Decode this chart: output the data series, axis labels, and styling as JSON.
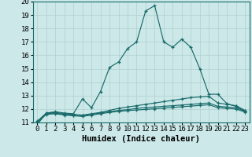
{
  "xlabel": "Humidex (Indice chaleur)",
  "bg_color": "#cce8e8",
  "grid_color": "#b8d8d8",
  "line_color": "#1a6b6b",
  "line1": {
    "x": [
      0,
      1,
      2,
      3,
      4,
      5,
      6,
      7,
      8,
      9,
      10,
      11,
      12,
      13,
      14,
      15,
      16,
      17,
      18,
      19,
      20,
      21,
      22,
      23
    ],
    "y": [
      10.85,
      11.7,
      11.8,
      11.7,
      11.65,
      12.75,
      12.1,
      13.3,
      15.1,
      15.5,
      16.5,
      17.0,
      19.3,
      19.7,
      17.0,
      16.6,
      17.2,
      16.6,
      15.0,
      13.1,
      13.1,
      12.4,
      12.2,
      11.85
    ]
  },
  "line2": {
    "x": [
      0,
      1,
      2,
      3,
      4,
      5,
      6,
      7,
      8,
      9,
      10,
      11,
      12,
      13,
      14,
      15,
      16,
      17,
      18,
      19,
      20,
      21,
      22,
      23
    ],
    "y": [
      11.1,
      11.7,
      11.75,
      11.65,
      11.6,
      11.55,
      11.65,
      11.75,
      11.9,
      12.05,
      12.15,
      12.25,
      12.35,
      12.45,
      12.55,
      12.65,
      12.75,
      12.85,
      12.9,
      12.95,
      12.45,
      12.35,
      12.25,
      11.9
    ]
  },
  "line3": {
    "x": [
      0,
      1,
      2,
      3,
      4,
      5,
      6,
      7,
      8,
      9,
      10,
      11,
      12,
      13,
      14,
      15,
      16,
      17,
      18,
      19,
      20,
      21,
      22,
      23
    ],
    "y": [
      11.05,
      11.65,
      11.7,
      11.6,
      11.55,
      11.5,
      11.6,
      11.7,
      11.8,
      11.9,
      11.95,
      12.05,
      12.1,
      12.15,
      12.2,
      12.25,
      12.3,
      12.35,
      12.4,
      12.45,
      12.2,
      12.15,
      12.1,
      11.82
    ]
  },
  "line4": {
    "x": [
      0,
      1,
      2,
      3,
      4,
      5,
      6,
      7,
      8,
      9,
      10,
      11,
      12,
      13,
      14,
      15,
      16,
      17,
      18,
      19,
      20,
      21,
      22,
      23
    ],
    "y": [
      11.0,
      11.6,
      11.65,
      11.55,
      11.5,
      11.45,
      11.55,
      11.65,
      11.75,
      11.82,
      11.88,
      11.93,
      11.97,
      12.02,
      12.07,
      12.12,
      12.17,
      12.22,
      12.27,
      12.32,
      12.1,
      12.05,
      12.0,
      11.78
    ]
  },
  "ylim": [
    11,
    20
  ],
  "xlim": [
    -0.5,
    23.5
  ],
  "yticks": [
    11,
    12,
    13,
    14,
    15,
    16,
    17,
    18,
    19,
    20
  ],
  "xticks": [
    0,
    1,
    2,
    3,
    4,
    5,
    6,
    7,
    8,
    9,
    10,
    11,
    12,
    13,
    14,
    15,
    16,
    17,
    18,
    19,
    20,
    21,
    22,
    23
  ],
  "fontsize": 6.5,
  "xlabel_fontsize": 7.5
}
